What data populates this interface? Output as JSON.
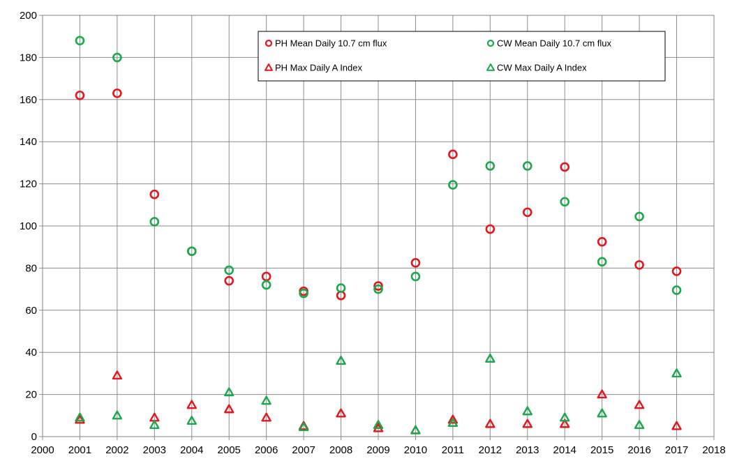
{
  "chart_data": {
    "type": "scatter",
    "title": "",
    "xlabel": "",
    "ylabel": "",
    "xlim": [
      2000,
      2018
    ],
    "ylim": [
      0,
      200
    ],
    "x_ticks": [
      "2000",
      "2001",
      "2002",
      "2003",
      "2004",
      "2005",
      "2006",
      "2007",
      "2008",
      "2009",
      "2010",
      "2011",
      "2012",
      "2013",
      "2014",
      "2015",
      "2016",
      "2017",
      "2018"
    ],
    "y_ticks": [
      "0",
      "20",
      "40",
      "60",
      "80",
      "100",
      "120",
      "140",
      "160",
      "180",
      "200"
    ],
    "grid": true,
    "legend_position": "top-right",
    "x": [
      2001,
      2002,
      2003,
      2004,
      2005,
      2006,
      2007,
      2008,
      2009,
      2010,
      2011,
      2012,
      2013,
      2014,
      2015,
      2016,
      2017
    ],
    "series": [
      {
        "name": "PH Mean Daily 10.7 cm flux",
        "marker": "circle",
        "color": "#e8141c",
        "values": [
          162,
          163,
          115,
          88,
          74,
          76,
          69,
          67,
          71.5,
          82.5,
          134,
          98.5,
          106.5,
          128,
          92.5,
          81.5,
          78.5
        ]
      },
      {
        "name": "CW Mean Daily 10.7 cm flux",
        "marker": "circle",
        "color": "#1aa94a",
        "values": [
          188,
          180,
          102,
          88,
          79,
          72,
          68,
          70.5,
          70,
          76,
          119.5,
          128.5,
          128.5,
          111.5,
          83,
          104.5,
          69.5
        ]
      },
      {
        "name": "PH Max Daily A Index",
        "marker": "triangle",
        "color": "#e8141c",
        "values": [
          8,
          29,
          9,
          15,
          13,
          9,
          5,
          11,
          4,
          3,
          8,
          6,
          6,
          6,
          20,
          15,
          5
        ]
      },
      {
        "name": "CW Max Daily A Index",
        "marker": "triangle",
        "color": "#1aa94a",
        "values": [
          9,
          10,
          5.5,
          7.5,
          21,
          17,
          4.5,
          36,
          5.5,
          3,
          6.5,
          37,
          12,
          9,
          11,
          5.5,
          30
        ]
      }
    ]
  }
}
